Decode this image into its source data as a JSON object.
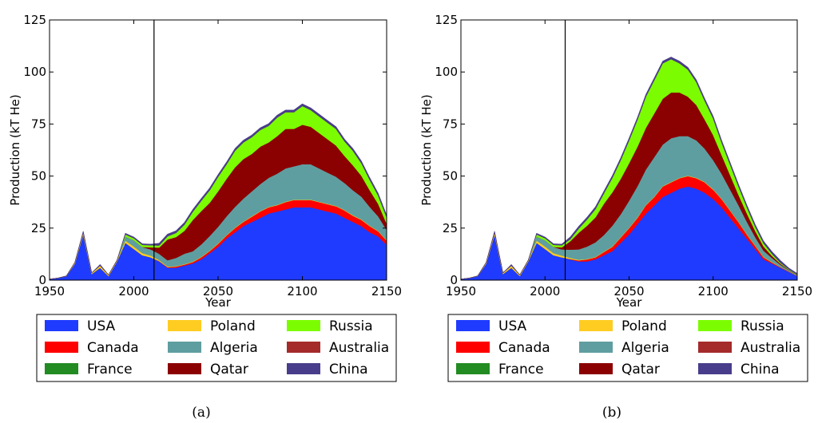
{
  "chart_data": [
    {
      "type": "area",
      "stacked": true,
      "caption": "(a)",
      "xlabel": "Year",
      "ylabel": "Production (kT He)",
      "xlim": [
        1950,
        2150
      ],
      "ylim": [
        0,
        125
      ],
      "xticks": [
        "1950",
        "2000",
        "2050",
        "2100",
        "2150"
      ],
      "yticks": [
        "0",
        "25",
        "50",
        "75",
        "100",
        "125"
      ],
      "vline_year": 2012,
      "x": [
        1950,
        1955,
        1960,
        1965,
        1970,
        1975,
        1980,
        1985,
        1990,
        1995,
        2000,
        2005,
        2010,
        2015,
        2020,
        2025,
        2030,
        2035,
        2040,
        2045,
        2050,
        2055,
        2060,
        2065,
        2070,
        2075,
        2080,
        2085,
        2090,
        2095,
        2100,
        2105,
        2110,
        2115,
        2120,
        2125,
        2130,
        2135,
        2140,
        2145,
        2150
      ],
      "series": [
        {
          "name": "USA",
          "values": [
            0.5,
            1,
            2,
            8,
            22,
            3,
            6,
            2,
            9,
            18,
            15,
            12,
            11,
            9,
            6,
            6,
            7,
            8,
            10,
            13,
            16,
            20,
            23,
            26,
            28,
            30,
            32,
            33,
            34,
            35,
            35,
            35,
            34,
            33,
            32,
            30,
            28,
            26,
            23,
            21,
            17
          ]
        },
        {
          "name": "Canada",
          "values": [
            0,
            0,
            0,
            0,
            0,
            0,
            0,
            0,
            0,
            0,
            0,
            0,
            0,
            0.2,
            0.3,
            0.5,
            0.5,
            0.7,
            1,
            1,
            1.5,
            1.5,
            2,
            2,
            2.5,
            3,
            3,
            3,
            3.5,
            3.5,
            3.5,
            3.5,
            3.5,
            3.5,
            3.5,
            3.5,
            3,
            3,
            3,
            2.5,
            2
          ]
        },
        {
          "name": "France",
          "values": [
            0,
            0,
            0,
            0,
            0,
            0,
            0,
            0,
            0,
            0,
            0,
            0,
            0,
            0,
            0,
            0,
            0,
            0,
            0,
            0,
            0,
            0,
            0,
            0,
            0,
            0,
            0,
            0,
            0,
            0,
            0,
            0,
            0,
            0,
            0,
            0,
            0,
            0,
            0,
            0,
            0
          ]
        },
        {
          "name": "Poland",
          "values": [
            0,
            0,
            0,
            0.5,
            1,
            0.5,
            1,
            0.5,
            0.5,
            1,
            1.2,
            1,
            0.8,
            0.5,
            0.3,
            0.2,
            0.2,
            0.2,
            0.2,
            0.2,
            0.2,
            0.2,
            0.2,
            0.2,
            0.2,
            0.2,
            0.2,
            0.2,
            0.2,
            0.2,
            0.2,
            0.2,
            0.2,
            0.2,
            0.2,
            0.2,
            0.2,
            0.2,
            0.2,
            0.2,
            0.2
          ]
        },
        {
          "name": "Algeria",
          "values": [
            0,
            0,
            0,
            0,
            0,
            0,
            0,
            0,
            0,
            2,
            3,
            3,
            3,
            3,
            3,
            4,
            5,
            5,
            6,
            7,
            8,
            9,
            10,
            11,
            12,
            13,
            14,
            15,
            16,
            16,
            17,
            17,
            16,
            15,
            14,
            13,
            12,
            11,
            9,
            7,
            5
          ]
        },
        {
          "name": "Qatar",
          "values": [
            0,
            0,
            0,
            0,
            0,
            0,
            0,
            0,
            0,
            0,
            0,
            0,
            1,
            3,
            10,
            10,
            11,
            15,
            16,
            16,
            17,
            18,
            19,
            19,
            18,
            18,
            17,
            18,
            19,
            18,
            19,
            18,
            17,
            16,
            15,
            13,
            12,
            10,
            8,
            6,
            3
          ]
        },
        {
          "name": "Russia",
          "values": [
            0,
            0,
            0,
            0,
            0,
            0,
            0,
            0,
            0,
            1,
            1,
            1,
            1,
            1,
            1.5,
            2,
            3,
            4,
            5,
            6,
            7,
            7,
            8,
            8,
            8,
            8,
            8,
            9,
            8,
            8,
            9,
            8,
            8,
            8,
            8,
            7,
            7,
            6,
            5,
            4,
            3
          ]
        },
        {
          "name": "Australia",
          "values": [
            0,
            0,
            0,
            0,
            0,
            0,
            0,
            0,
            0,
            0,
            0,
            0,
            0,
            0,
            0,
            0,
            0,
            0,
            0,
            0,
            0,
            0,
            0,
            0,
            0,
            0,
            0,
            0,
            0,
            0,
            0,
            0,
            0,
            0,
            0,
            0,
            0,
            0,
            0,
            0,
            0
          ]
        },
        {
          "name": "China",
          "values": [
            0,
            0,
            0,
            0,
            0.5,
            0,
            0.5,
            0,
            0,
            0.5,
            0.5,
            0.5,
            0.5,
            1,
            1,
            1,
            1,
            1,
            1,
            1,
            1,
            1,
            1,
            1,
            1,
            1,
            1,
            1,
            1,
            1,
            1,
            1,
            1,
            1,
            1,
            1,
            1,
            1,
            1,
            1,
            1
          ]
        }
      ]
    },
    {
      "type": "area",
      "stacked": true,
      "caption": "(b)",
      "xlabel": "Year",
      "ylabel": "Production (kT He)",
      "xlim": [
        1950,
        2150
      ],
      "ylim": [
        0,
        125
      ],
      "xticks": [
        "1950",
        "2000",
        "2050",
        "2100",
        "2150"
      ],
      "yticks": [
        "0",
        "25",
        "50",
        "75",
        "100",
        "125"
      ],
      "vline_year": 2012,
      "x": [
        1950,
        1955,
        1960,
        1965,
        1970,
        1975,
        1980,
        1985,
        1990,
        1995,
        2000,
        2005,
        2010,
        2015,
        2020,
        2025,
        2030,
        2035,
        2040,
        2045,
        2050,
        2055,
        2060,
        2065,
        2070,
        2075,
        2080,
        2085,
        2090,
        2095,
        2100,
        2105,
        2110,
        2115,
        2120,
        2125,
        2130,
        2135,
        2140,
        2145,
        2150
      ],
      "series": [
        {
          "name": "USA",
          "values": [
            0.5,
            1,
            2,
            8,
            22,
            3,
            6,
            2,
            9,
            18,
            15,
            12,
            11,
            10,
            9,
            9,
            10,
            12,
            14,
            18,
            22,
            27,
            32,
            36,
            40,
            42,
            44,
            45,
            44,
            42,
            39,
            35,
            30,
            25,
            20,
            15,
            10,
            8,
            6,
            4,
            2
          ]
        },
        {
          "name": "Canada",
          "values": [
            0,
            0,
            0,
            0,
            0,
            0,
            0,
            0,
            0,
            0,
            0,
            0,
            0,
            0.2,
            0.5,
            1,
            1,
            1.5,
            2,
            2.5,
            3,
            3,
            4,
            4,
            5,
            5,
            5,
            5,
            5,
            5,
            4.5,
            4,
            3.5,
            3,
            2,
            1.5,
            1,
            0.5,
            0.3,
            0.2,
            0.1
          ]
        },
        {
          "name": "France",
          "values": [
            0,
            0,
            0,
            0,
            0,
            0,
            0,
            0,
            0,
            0,
            0,
            0,
            0,
            0,
            0,
            0,
            0,
            0,
            0,
            0,
            0,
            0,
            0,
            0,
            0,
            0,
            0,
            0,
            0,
            0,
            0,
            0,
            0,
            0,
            0,
            0,
            0,
            0,
            0,
            0,
            0
          ]
        },
        {
          "name": "Poland",
          "values": [
            0,
            0,
            0,
            0.5,
            1,
            0.5,
            1,
            0.5,
            0.5,
            1,
            1.2,
            1,
            0.8,
            0.5,
            0.3,
            0.2,
            0.2,
            0.2,
            0.2,
            0.2,
            0.2,
            0.2,
            0.2,
            0.2,
            0.2,
            0.2,
            0.2,
            0.2,
            0.2,
            0.2,
            0.2,
            0.2,
            0.2,
            0.2,
            0.2,
            0.2,
            0.2,
            0.2,
            0.1,
            0.1,
            0.1
          ]
        },
        {
          "name": "Algeria",
          "values": [
            0,
            0,
            0,
            0,
            0,
            0,
            0,
            0,
            0,
            2,
            3,
            3,
            3,
            4,
            5,
            6,
            7,
            8,
            10,
            11,
            13,
            15,
            17,
            19,
            20,
            21,
            20,
            19,
            18,
            16,
            14,
            12,
            10,
            8,
            6,
            4,
            3,
            2,
            1,
            0.5,
            0.2
          ]
        },
        {
          "name": "Qatar",
          "values": [
            0,
            0,
            0,
            0,
            0,
            0,
            0,
            0,
            0,
            0,
            0,
            0,
            1,
            4,
            8,
            10,
            12,
            15,
            16,
            17,
            18,
            19,
            20,
            21,
            22,
            22,
            21,
            19,
            17,
            14,
            12,
            9,
            7,
            5,
            4,
            3,
            2,
            1,
            0.5,
            0.2,
            0.1
          ]
        },
        {
          "name": "Russia",
          "values": [
            0,
            0,
            0,
            0,
            0,
            0,
            0,
            0,
            0,
            1,
            1,
            1,
            1,
            1,
            2,
            3,
            4,
            5,
            7,
            9,
            11,
            13,
            15,
            16,
            17,
            16,
            14,
            13,
            11,
            9,
            8,
            6,
            5,
            4,
            3,
            2,
            1.5,
            1,
            0.5,
            0.3,
            0.2
          ]
        },
        {
          "name": "Australia",
          "values": [
            0,
            0,
            0,
            0,
            0,
            0,
            0,
            0,
            0,
            0,
            0,
            0,
            0,
            0,
            0,
            0,
            0,
            0,
            0,
            0,
            0,
            0,
            0,
            0,
            0,
            0,
            0,
            0,
            0,
            0,
            0,
            0,
            0,
            0,
            0,
            0,
            0,
            0,
            0,
            0,
            0
          ]
        },
        {
          "name": "China",
          "values": [
            0,
            0,
            0,
            0,
            0.5,
            0,
            0.5,
            0,
            0,
            0.5,
            0.5,
            0.5,
            0.5,
            1,
            1,
            1,
            1,
            1,
            1,
            1,
            1,
            1,
            1,
            1,
            1,
            1,
            1,
            1,
            1,
            1,
            1,
            1,
            1,
            1,
            1,
            1,
            1,
            1,
            1,
            0.5,
            0.5
          ]
        }
      ]
    }
  ],
  "colors": {
    "USA": "#1f3bff",
    "Canada": "#ff0000",
    "France": "#228b22",
    "Poland": "#ffcc22",
    "Algeria": "#5f9ea0",
    "Qatar": "#8b0000",
    "Russia": "#7cfc00",
    "Australia": "#a52a2a",
    "China": "#483d8b"
  },
  "legend_order": [
    "USA",
    "Poland",
    "Russia",
    "Canada",
    "Algeria",
    "Australia",
    "France",
    "Qatar",
    "China"
  ]
}
